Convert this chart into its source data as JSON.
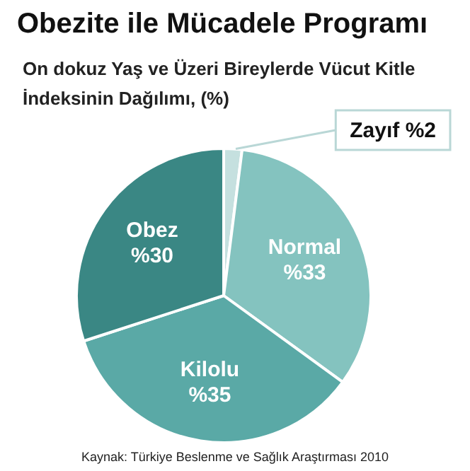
{
  "chart_data": {
    "type": "pie",
    "title": "Obezite ile Mücadele Programı",
    "subtitle": "On dokuz Yaş ve Üzeri Bireylerde Vücut Kitle İndeksinin Dağılımı, (%)",
    "categories": [
      "Zayıf",
      "Normal",
      "Kilolu",
      "Obez"
    ],
    "values": [
      2,
      33,
      35,
      30
    ],
    "value_labels": [
      "%2",
      "%33",
      "%35",
      "%30"
    ],
    "colors": [
      "#c5e0df",
      "#84c3bf",
      "#5aa9a6",
      "#3a8784"
    ],
    "annotations": [
      "Kaynak: Türkiye Beslenme ve Sağlık Araştırması 2010"
    ]
  }
}
